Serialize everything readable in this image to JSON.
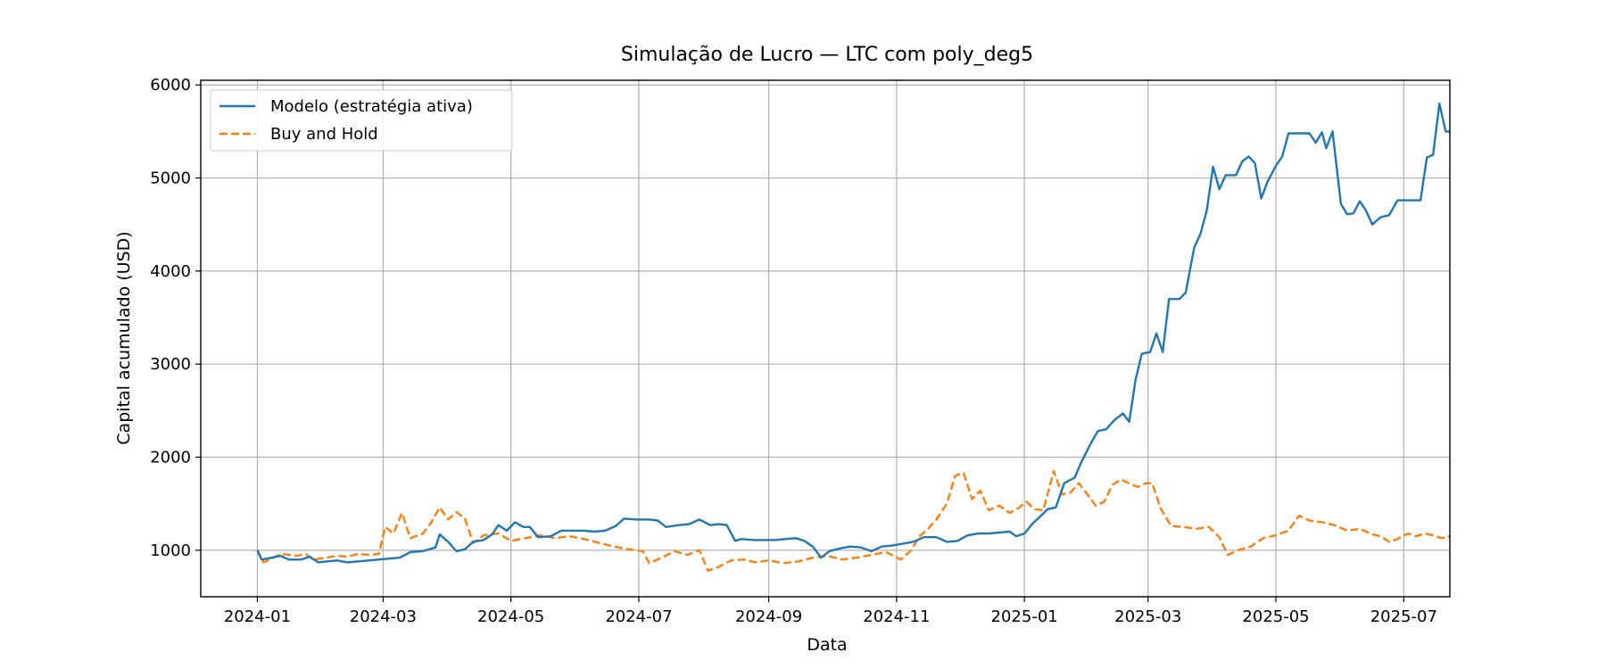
{
  "chart_data": {
    "type": "line",
    "title": "Simulação de Lucro — LTC com poly_deg5",
    "xlabel": "Data",
    "ylabel": "Capital acumulado (USD)",
    "x_ticks": [
      "2024-01",
      "2024-03",
      "2024-05",
      "2024-07",
      "2024-09",
      "2024-11",
      "2025-01",
      "2025-03",
      "2025-05",
      "2025-07"
    ],
    "y_ticks": [
      1000,
      2000,
      3000,
      4000,
      5000,
      6000
    ],
    "xlim": [
      "2023-12-05",
      "2025-07-23"
    ],
    "ylim": [
      500,
      6050
    ],
    "grid": true,
    "legend_position": "top-left",
    "series": [
      {
        "name": "Modelo (estratégia ativa)",
        "color": "#1f77b4",
        "style": "solid",
        "points": [
          [
            "2024-01-01",
            1000
          ],
          [
            "2024-01-03",
            900
          ],
          [
            "2024-01-08",
            920
          ],
          [
            "2024-01-12",
            940
          ],
          [
            "2024-01-16",
            900
          ],
          [
            "2024-01-22",
            900
          ],
          [
            "2024-01-26",
            930
          ],
          [
            "2024-01-30",
            870
          ],
          [
            "2024-02-03",
            880
          ],
          [
            "2024-02-08",
            890
          ],
          [
            "2024-02-13",
            870
          ],
          [
            "2024-02-18",
            880
          ],
          [
            "2024-02-23",
            890
          ],
          [
            "2024-02-28",
            900
          ],
          [
            "2024-03-04",
            910
          ],
          [
            "2024-03-09",
            920
          ],
          [
            "2024-03-14",
            980
          ],
          [
            "2024-03-20",
            990
          ],
          [
            "2024-03-26",
            1030
          ],
          [
            "2024-03-28",
            1170
          ],
          [
            "2024-04-01",
            1090
          ],
          [
            "2024-04-05",
            990
          ],
          [
            "2024-04-09",
            1010
          ],
          [
            "2024-04-13",
            1090
          ],
          [
            "2024-04-18",
            1110
          ],
          [
            "2024-04-22",
            1170
          ],
          [
            "2024-04-25",
            1270
          ],
          [
            "2024-04-29",
            1210
          ],
          [
            "2024-05-03",
            1300
          ],
          [
            "2024-05-07",
            1250
          ],
          [
            "2024-05-10",
            1250
          ],
          [
            "2024-05-14",
            1140
          ],
          [
            "2024-05-20",
            1150
          ],
          [
            "2024-05-25",
            1210
          ],
          [
            "2024-05-31",
            1210
          ],
          [
            "2024-06-05",
            1210
          ],
          [
            "2024-06-10",
            1200
          ],
          [
            "2024-06-15",
            1210
          ],
          [
            "2024-06-20",
            1260
          ],
          [
            "2024-06-24",
            1340
          ],
          [
            "2024-06-30",
            1330
          ],
          [
            "2024-07-06",
            1330
          ],
          [
            "2024-07-10",
            1320
          ],
          [
            "2024-07-14",
            1250
          ],
          [
            "2024-07-20",
            1270
          ],
          [
            "2024-07-25",
            1280
          ],
          [
            "2024-07-30",
            1330
          ],
          [
            "2024-08-04",
            1270
          ],
          [
            "2024-08-08",
            1280
          ],
          [
            "2024-08-12",
            1270
          ],
          [
            "2024-08-16",
            1100
          ],
          [
            "2024-08-19",
            1120
          ],
          [
            "2024-08-25",
            1110
          ],
          [
            "2024-09-04",
            1110
          ],
          [
            "2024-09-09",
            1120
          ],
          [
            "2024-09-14",
            1130
          ],
          [
            "2024-09-18",
            1100
          ],
          [
            "2024-09-22",
            1040
          ],
          [
            "2024-09-26",
            920
          ],
          [
            "2024-09-30",
            990
          ],
          [
            "2024-10-05",
            1020
          ],
          [
            "2024-10-10",
            1040
          ],
          [
            "2024-10-15",
            1030
          ],
          [
            "2024-10-20",
            990
          ],
          [
            "2024-10-25",
            1040
          ],
          [
            "2024-10-30",
            1050
          ],
          [
            "2024-11-04",
            1070
          ],
          [
            "2024-11-09",
            1090
          ],
          [
            "2024-11-14",
            1140
          ],
          [
            "2024-11-20",
            1140
          ],
          [
            "2024-11-25",
            1090
          ],
          [
            "2024-11-30",
            1100
          ],
          [
            "2024-12-05",
            1160
          ],
          [
            "2024-12-10",
            1180
          ],
          [
            "2024-12-15",
            1180
          ],
          [
            "2024-12-20",
            1190
          ],
          [
            "2024-12-25",
            1200
          ],
          [
            "2024-12-28",
            1150
          ],
          [
            "2025-01-01",
            1180
          ],
          [
            "2025-01-05",
            1290
          ],
          [
            "2025-01-08",
            1350
          ],
          [
            "2025-01-12",
            1440
          ],
          [
            "2025-01-16",
            1460
          ],
          [
            "2025-01-20",
            1720
          ],
          [
            "2025-01-25",
            1780
          ],
          [
            "2025-01-28",
            1940
          ],
          [
            "2025-02-01",
            2120
          ],
          [
            "2025-02-05",
            2280
          ],
          [
            "2025-02-09",
            2300
          ],
          [
            "2025-02-13",
            2400
          ],
          [
            "2025-02-17",
            2470
          ],
          [
            "2025-02-20",
            2380
          ],
          [
            "2025-02-23",
            2830
          ],
          [
            "2025-02-26",
            3110
          ],
          [
            "2025-03-02",
            3130
          ],
          [
            "2025-03-05",
            3330
          ],
          [
            "2025-03-08",
            3130
          ],
          [
            "2025-03-11",
            3700
          ],
          [
            "2025-03-16",
            3700
          ],
          [
            "2025-03-19",
            3770
          ],
          [
            "2025-03-23",
            4250
          ],
          [
            "2025-03-26",
            4400
          ],
          [
            "2025-03-29",
            4650
          ],
          [
            "2025-04-01",
            5120
          ],
          [
            "2025-04-04",
            4880
          ],
          [
            "2025-04-07",
            5030
          ],
          [
            "2025-04-12",
            5030
          ],
          [
            "2025-04-15",
            5180
          ],
          [
            "2025-04-18",
            5230
          ],
          [
            "2025-04-21",
            5160
          ],
          [
            "2025-04-24",
            4780
          ],
          [
            "2025-04-27",
            4960
          ],
          [
            "2025-05-01",
            5130
          ],
          [
            "2025-05-04",
            5230
          ],
          [
            "2025-05-07",
            5480
          ],
          [
            "2025-05-12",
            5480
          ],
          [
            "2025-05-17",
            5480
          ],
          [
            "2025-05-20",
            5380
          ],
          [
            "2025-05-23",
            5490
          ],
          [
            "2025-05-25",
            5320
          ],
          [
            "2025-05-28",
            5500
          ],
          [
            "2025-06-01",
            4720
          ],
          [
            "2025-06-04",
            4610
          ],
          [
            "2025-06-07",
            4620
          ],
          [
            "2025-06-10",
            4750
          ],
          [
            "2025-06-13",
            4650
          ],
          [
            "2025-06-16",
            4500
          ],
          [
            "2025-06-20",
            4580
          ],
          [
            "2025-06-24",
            4600
          ],
          [
            "2025-06-28",
            4760
          ],
          [
            "2025-07-04",
            4760
          ],
          [
            "2025-07-09",
            4760
          ],
          [
            "2025-07-12",
            5220
          ],
          [
            "2025-07-15",
            5250
          ],
          [
            "2025-07-18",
            5800
          ],
          [
            "2025-07-21",
            5500
          ],
          [
            "2025-07-23",
            5500
          ]
        ]
      },
      {
        "name": "Buy and Hold",
        "color": "#ff7f0e",
        "style": "dashed",
        "points": [
          [
            "2024-01-01",
            1000
          ],
          [
            "2024-01-04",
            870
          ],
          [
            "2024-01-08",
            910
          ],
          [
            "2024-01-12",
            960
          ],
          [
            "2024-01-16",
            950
          ],
          [
            "2024-01-20",
            940
          ],
          [
            "2024-01-24",
            960
          ],
          [
            "2024-01-28",
            900
          ],
          [
            "2024-02-03",
            920
          ],
          [
            "2024-02-08",
            940
          ],
          [
            "2024-02-13",
            930
          ],
          [
            "2024-02-18",
            960
          ],
          [
            "2024-02-23",
            950
          ],
          [
            "2024-02-28",
            960
          ],
          [
            "2024-03-02",
            1250
          ],
          [
            "2024-03-06",
            1180
          ],
          [
            "2024-03-10",
            1400
          ],
          [
            "2024-03-14",
            1130
          ],
          [
            "2024-03-20",
            1180
          ],
          [
            "2024-03-24",
            1300
          ],
          [
            "2024-03-28",
            1460
          ],
          [
            "2024-04-01",
            1330
          ],
          [
            "2024-04-05",
            1410
          ],
          [
            "2024-04-09",
            1340
          ],
          [
            "2024-04-13",
            1080
          ],
          [
            "2024-04-18",
            1160
          ],
          [
            "2024-04-25",
            1180
          ],
          [
            "2024-05-01",
            1100
          ],
          [
            "2024-05-08",
            1130
          ],
          [
            "2024-05-15",
            1160
          ],
          [
            "2024-05-22",
            1130
          ],
          [
            "2024-05-29",
            1150
          ],
          [
            "2024-06-05",
            1120
          ],
          [
            "2024-06-12",
            1080
          ],
          [
            "2024-06-19",
            1040
          ],
          [
            "2024-06-26",
            1010
          ],
          [
            "2024-07-03",
            990
          ],
          [
            "2024-07-06",
            860
          ],
          [
            "2024-07-12",
            920
          ],
          [
            "2024-07-18",
            990
          ],
          [
            "2024-07-24",
            950
          ],
          [
            "2024-07-30",
            1000
          ],
          [
            "2024-08-03",
            780
          ],
          [
            "2024-08-08",
            820
          ],
          [
            "2024-08-14",
            890
          ],
          [
            "2024-08-20",
            900
          ],
          [
            "2024-08-26",
            870
          ],
          [
            "2024-09-01",
            890
          ],
          [
            "2024-09-08",
            860
          ],
          [
            "2024-09-15",
            880
          ],
          [
            "2024-09-22",
            920
          ],
          [
            "2024-09-29",
            940
          ],
          [
            "2024-10-06",
            900
          ],
          [
            "2024-10-13",
            920
          ],
          [
            "2024-10-20",
            950
          ],
          [
            "2024-10-27",
            980
          ],
          [
            "2024-11-03",
            900
          ],
          [
            "2024-11-08",
            1000
          ],
          [
            "2024-11-12",
            1150
          ],
          [
            "2024-11-16",
            1230
          ],
          [
            "2024-11-20",
            1330
          ],
          [
            "2024-11-25",
            1500
          ],
          [
            "2024-11-29",
            1800
          ],
          [
            "2024-12-03",
            1830
          ],
          [
            "2024-12-07",
            1550
          ],
          [
            "2024-12-11",
            1640
          ],
          [
            "2024-12-15",
            1430
          ],
          [
            "2024-12-20",
            1480
          ],
          [
            "2024-12-25",
            1400
          ],
          [
            "2024-12-29",
            1450
          ],
          [
            "2025-01-02",
            1520
          ],
          [
            "2025-01-06",
            1440
          ],
          [
            "2025-01-10",
            1430
          ],
          [
            "2025-01-15",
            1850
          ],
          [
            "2025-01-19",
            1600
          ],
          [
            "2025-01-23",
            1620
          ],
          [
            "2025-01-27",
            1720
          ],
          [
            "2025-01-31",
            1600
          ],
          [
            "2025-02-04",
            1480
          ],
          [
            "2025-02-08",
            1520
          ],
          [
            "2025-02-12",
            1700
          ],
          [
            "2025-02-16",
            1760
          ],
          [
            "2025-02-20",
            1720
          ],
          [
            "2025-02-24",
            1680
          ],
          [
            "2025-02-28",
            1720
          ],
          [
            "2025-03-03",
            1720
          ],
          [
            "2025-03-07",
            1450
          ],
          [
            "2025-03-12",
            1260
          ],
          [
            "2025-03-18",
            1250
          ],
          [
            "2025-03-24",
            1230
          ],
          [
            "2025-03-30",
            1250
          ],
          [
            "2025-04-04",
            1140
          ],
          [
            "2025-04-08",
            950
          ],
          [
            "2025-04-13",
            1000
          ],
          [
            "2025-04-19",
            1040
          ],
          [
            "2025-04-25",
            1130
          ],
          [
            "2025-05-01",
            1160
          ],
          [
            "2025-05-07",
            1210
          ],
          [
            "2025-05-12",
            1370
          ],
          [
            "2025-05-17",
            1320
          ],
          [
            "2025-05-23",
            1300
          ],
          [
            "2025-05-29",
            1270
          ],
          [
            "2025-06-04",
            1210
          ],
          [
            "2025-06-10",
            1230
          ],
          [
            "2025-06-16",
            1170
          ],
          [
            "2025-06-20",
            1150
          ],
          [
            "2025-06-24",
            1090
          ],
          [
            "2025-06-28",
            1120
          ],
          [
            "2025-07-03",
            1180
          ],
          [
            "2025-07-07",
            1150
          ],
          [
            "2025-07-11",
            1180
          ],
          [
            "2025-07-15",
            1160
          ],
          [
            "2025-07-19",
            1130
          ],
          [
            "2025-07-23",
            1150
          ]
        ]
      }
    ]
  }
}
